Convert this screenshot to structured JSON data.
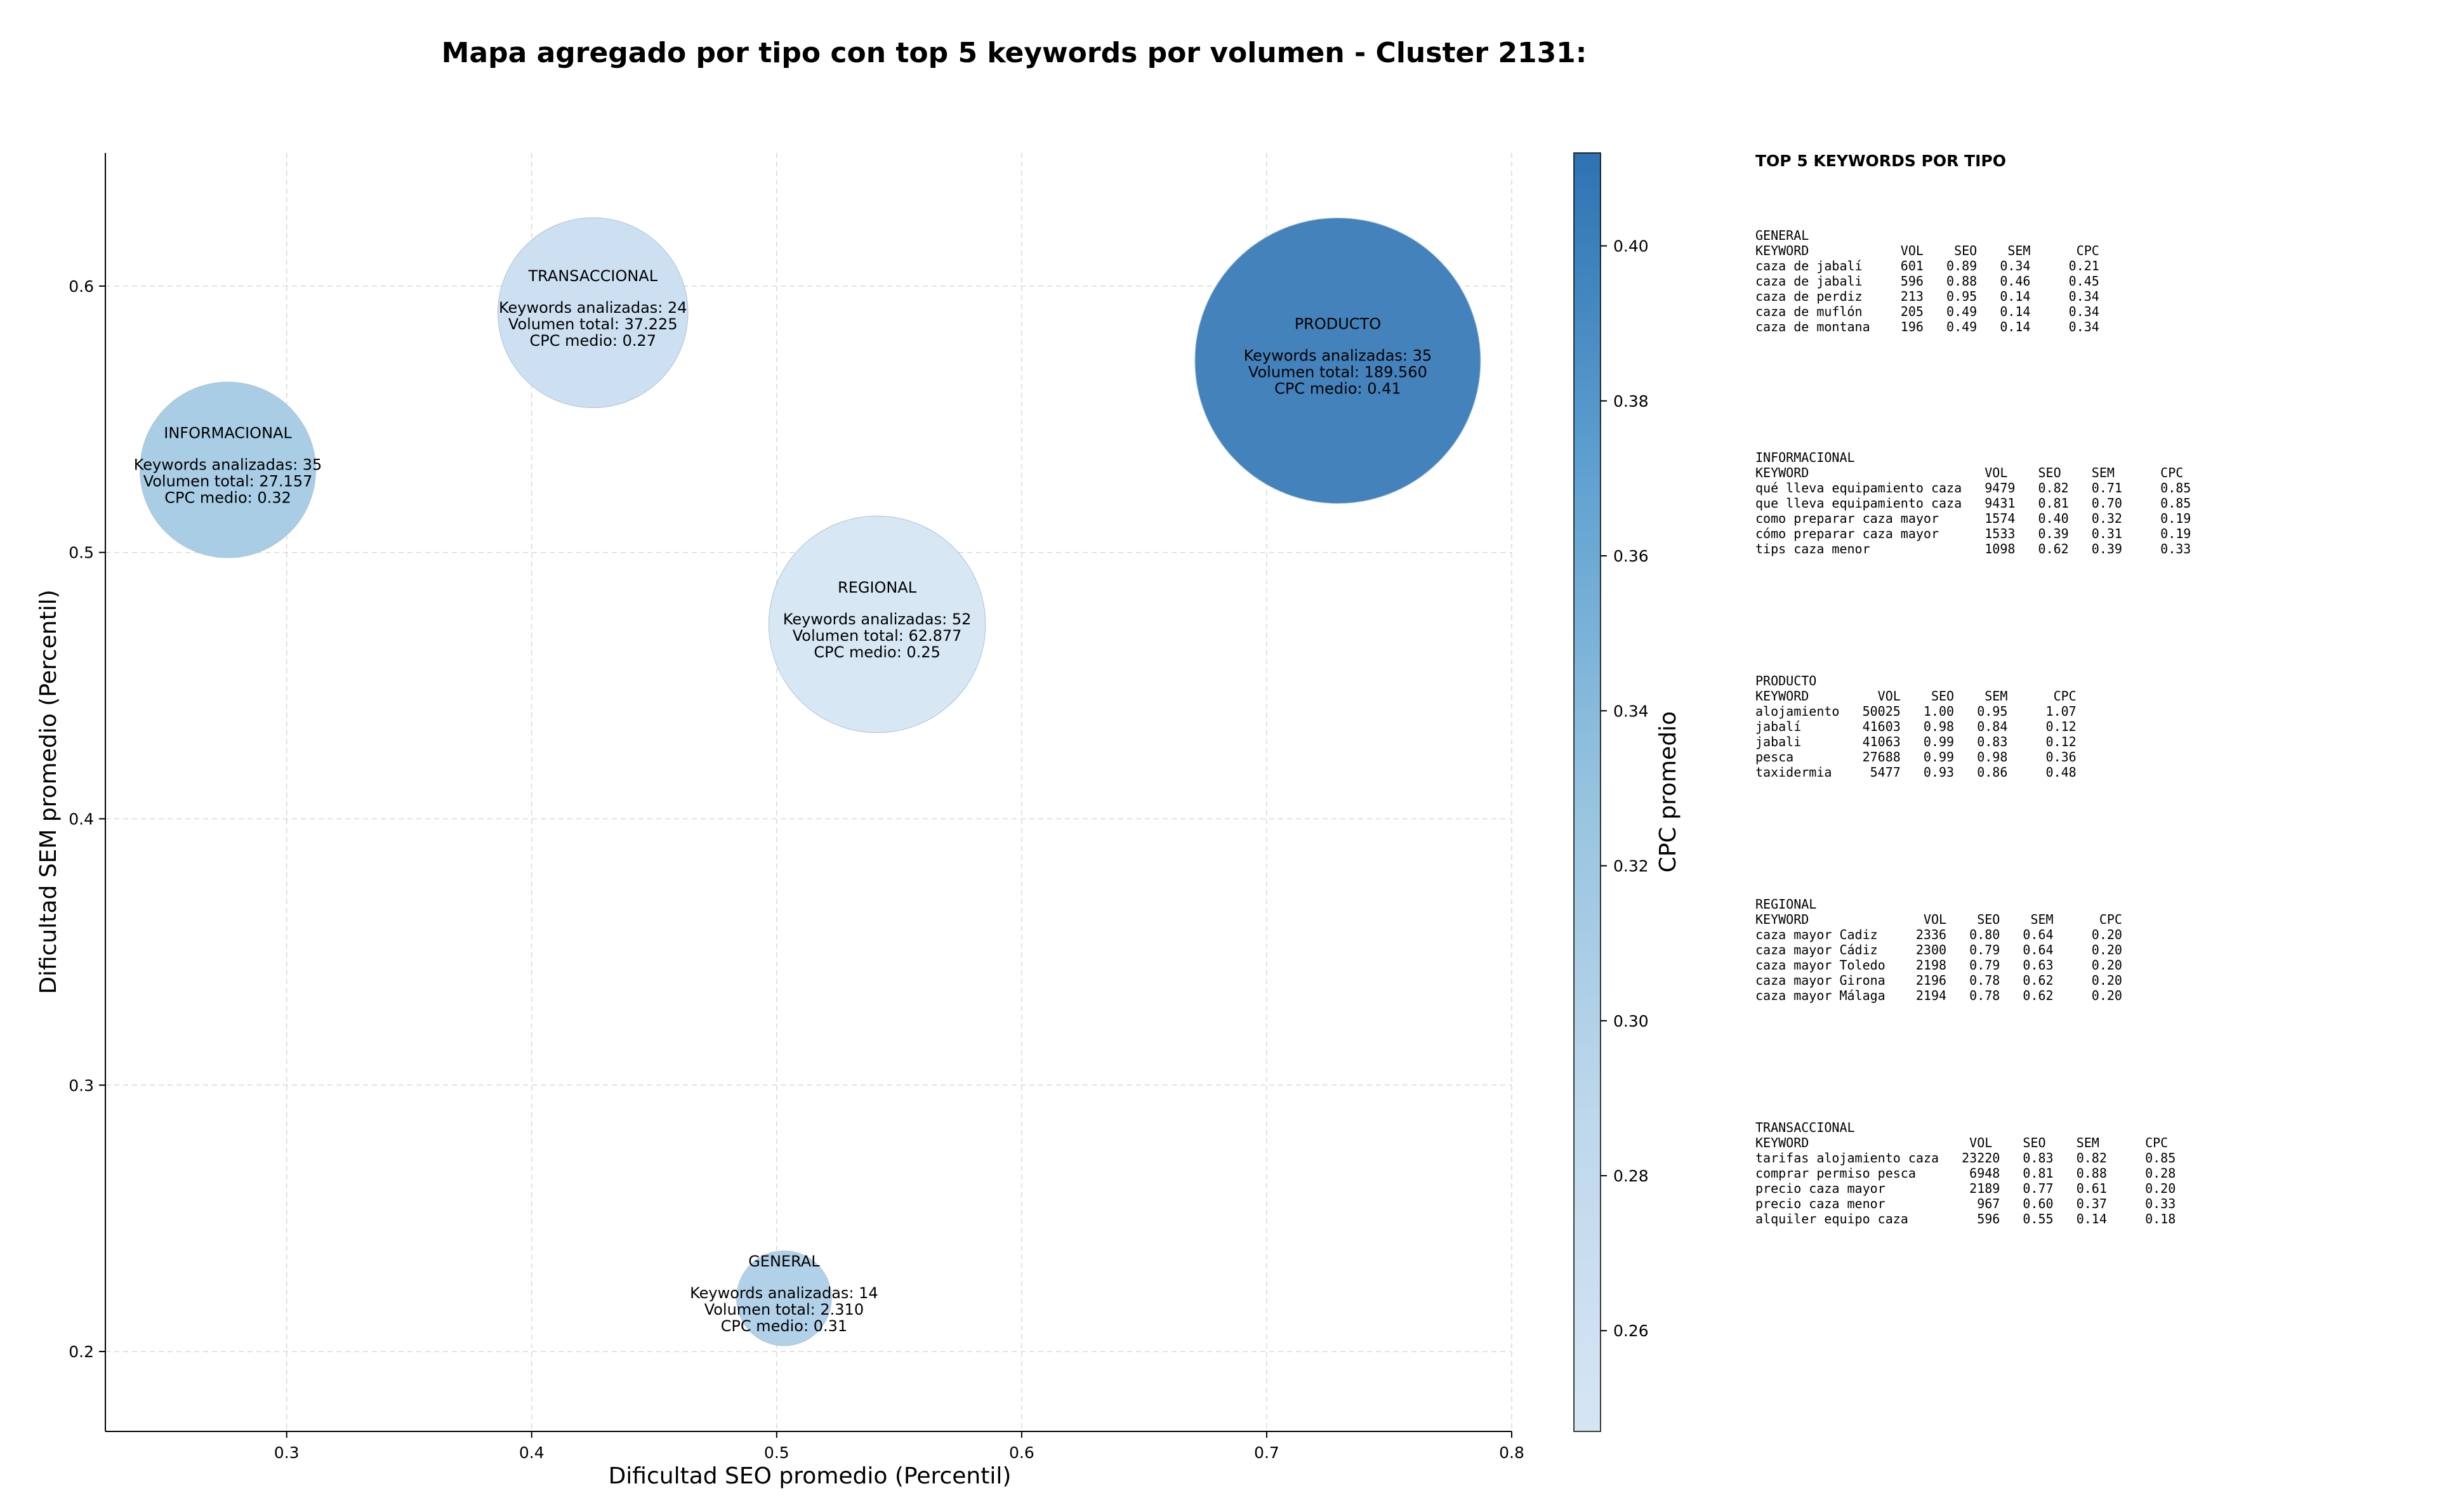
{
  "chart_data": {
    "type": "scatter",
    "title": "Mapa agregado por tipo con top 5 keywords por volumen - Cluster 2131:",
    "xlabel": "Dificultad SEO promedio (Percentil)",
    "ylabel": "Dificultad SEM promedio (Percentil)",
    "xlim": [
      0.226,
      0.8
    ],
    "ylim": [
      0.17,
      0.65
    ],
    "xticks": [
      "0.3",
      "0.4",
      "0.5",
      "0.6",
      "0.7",
      "0.8"
    ],
    "yticks": [
      "0.2",
      "0.3",
      "0.4",
      "0.5",
      "0.6"
    ],
    "grid": true,
    "colorbar": {
      "label": "CPC promedio",
      "min": 0.247,
      "max": 0.412,
      "ticks": [
        "0.26",
        "0.28",
        "0.30",
        "0.32",
        "0.34",
        "0.36",
        "0.38",
        "0.40"
      ]
    },
    "bubbles": [
      {
        "name": "TRANSACCIONAL",
        "x": 0.425,
        "y": 0.59,
        "keywords_line": "Keywords analizadas: 24",
        "volume_line": "Volumen total: 37.225",
        "cpc_line": "CPC medio: 0.27",
        "cpc": 0.27,
        "volume": 37225
      },
      {
        "name": "PRODUCTO",
        "x": 0.729,
        "y": 0.572,
        "keywords_line": "Keywords analizadas: 35",
        "volume_line": "Volumen total: 189.560",
        "cpc_line": "CPC medio: 0.41",
        "cpc": 0.41,
        "volume": 189560
      },
      {
        "name": "INFORMACIONAL",
        "x": 0.276,
        "y": 0.531,
        "keywords_line": "Keywords analizadas: 35",
        "volume_line": "Volumen total: 27.157",
        "cpc_line": "CPC medio: 0.32",
        "cpc": 0.32,
        "volume": 27157
      },
      {
        "name": "REGIONAL",
        "x": 0.541,
        "y": 0.473,
        "keywords_line": "Keywords analizadas: 52",
        "volume_line": "Volumen total: 62.877",
        "cpc_line": "CPC medio: 0.25",
        "cpc": 0.25,
        "volume": 62877
      },
      {
        "name": "GENERAL",
        "x": 0.503,
        "y": 0.22,
        "keywords_line": "Keywords analizadas: 14",
        "volume_line": "Volumen total: 2.310",
        "cpc_line": "CPC medio: 0.31",
        "cpc": 0.31,
        "volume": 2310
      }
    ]
  },
  "panel": {
    "title": "TOP 5 KEYWORDS POR TIPO",
    "groups": [
      {
        "name": "GENERAL",
        "lines": [
          "KEYWORD            VOL    SEO    SEM      CPC",
          "caza de jabalí     601   0.89   0.34     0.21",
          "caza de jabali     596   0.88   0.46     0.45",
          "caza de perdiz     213   0.95   0.14     0.34",
          "caza de muflón     205   0.49   0.14     0.34",
          "caza de montana    196   0.49   0.14     0.34"
        ]
      },
      {
        "name": "INFORMACIONAL",
        "lines": [
          "KEYWORD                       VOL    SEO    SEM      CPC",
          "qué lleva equipamiento caza   9479   0.82   0.71     0.85",
          "que lleva equipamiento caza   9431   0.81   0.70     0.85",
          "como preparar caza mayor      1574   0.40   0.32     0.19",
          "cómo preparar caza mayor      1533   0.39   0.31     0.19",
          "tips caza menor               1098   0.62   0.39     0.33"
        ]
      },
      {
        "name": "PRODUCTO",
        "lines": [
          "KEYWORD         VOL    SEO    SEM      CPC",
          "alojamiento   50025   1.00   0.95     1.07",
          "jabalí        41603   0.98   0.84     0.12",
          "jabali        41063   0.99   0.83     0.12",
          "pesca         27688   0.99   0.98     0.36",
          "taxidermia     5477   0.93   0.86     0.48"
        ]
      },
      {
        "name": "REGIONAL",
        "lines": [
          "KEYWORD               VOL    SEO    SEM      CPC",
          "caza mayor Cadiz     2336   0.80   0.64     0.20",
          "caza mayor Cádiz     2300   0.79   0.64     0.20",
          "caza mayor Toledo    2198   0.79   0.63     0.20",
          "caza mayor Girona    2196   0.78   0.62     0.20",
          "caza mayor Málaga    2194   0.78   0.62     0.20"
        ]
      },
      {
        "name": "TRANSACCIONAL",
        "lines": [
          "KEYWORD                     VOL    SEO    SEM      CPC",
          "tarifas alojamiento caza   23220   0.83   0.82     0.85",
          "comprar permiso pesca       6948   0.81   0.88     0.28",
          "precio caza mayor           2189   0.77   0.61     0.20",
          "precio caza menor            967   0.60   0.37     0.33",
          "alquiler equipo caza         596   0.55   0.14     0.18"
        ]
      }
    ]
  }
}
